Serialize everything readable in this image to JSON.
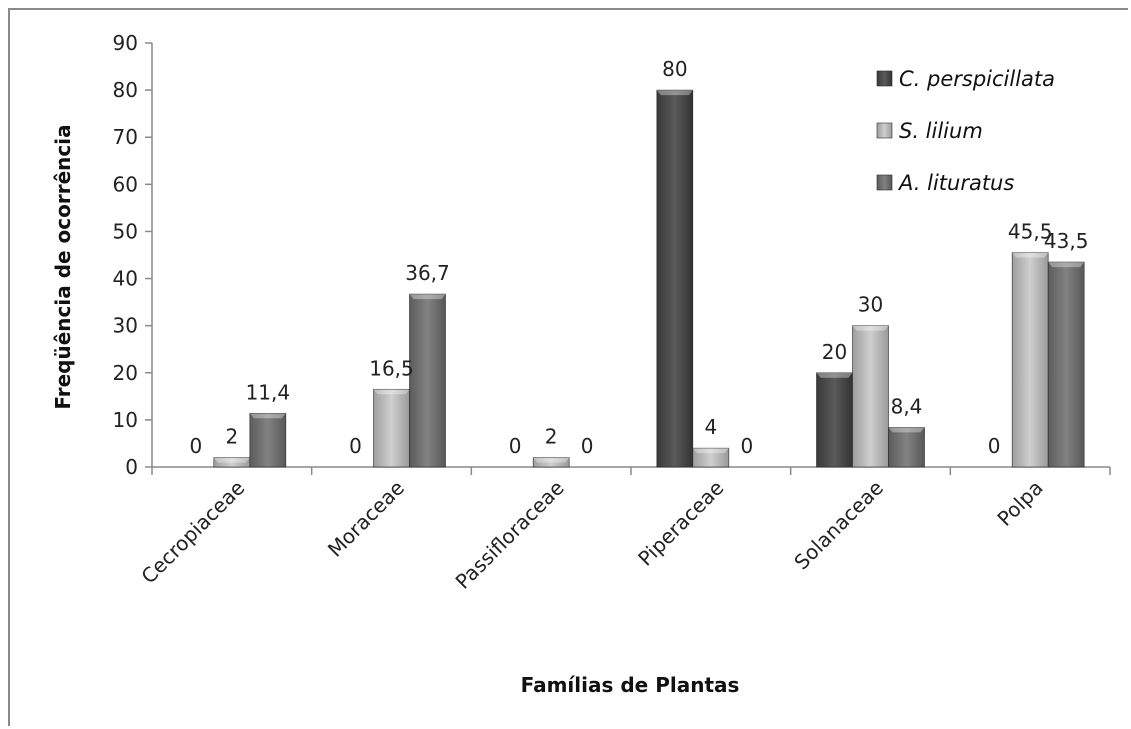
{
  "chart_data": {
    "type": "bar",
    "title": "",
    "xlabel": "Famílias de Plantas",
    "ylabel": "Freqüência de ocorrência",
    "ylim": [
      0,
      90
    ],
    "yticks": [
      0,
      10,
      20,
      30,
      40,
      50,
      60,
      70,
      80,
      90
    ],
    "categories": [
      "Cecropiaceae",
      "Moraceae",
      "Passifloraceae",
      "Piperaceae",
      "Solanaceae",
      "Polpa"
    ],
    "series": [
      {
        "name": "C. perspicillata",
        "color": "#4a4a4a",
        "values": [
          0,
          0,
          0,
          80,
          20,
          0
        ],
        "labels": [
          "0",
          "0",
          "0",
          "80",
          "20",
          "0"
        ]
      },
      {
        "name": "S. lilium",
        "color": "#b4b4b4",
        "values": [
          2,
          16.5,
          2,
          4,
          30,
          45.5
        ],
        "labels": [
          "2",
          "16,5",
          "2",
          "4",
          "30",
          "45,5"
        ]
      },
      {
        "name": "A. lituratus",
        "color": "#6f6f6f",
        "values": [
          11.4,
          36.7,
          0,
          0,
          8.4,
          43.5
        ],
        "labels": [
          "11,4",
          "36,7",
          "0",
          "0",
          "8,4",
          "43,5"
        ]
      }
    ],
    "legend_position": "top-right",
    "grid": false
  }
}
